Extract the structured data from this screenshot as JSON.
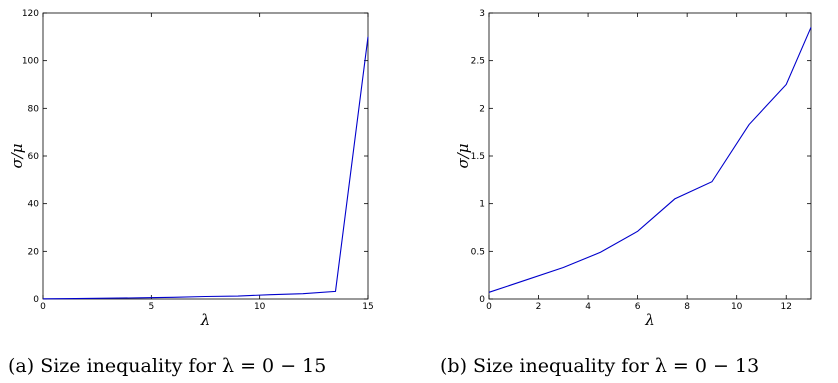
{
  "chart_data": [
    {
      "type": "line",
      "caption": "(a) Size inequality for λ = 0 − 15",
      "xlabel": "λ",
      "ylabel": "σ/μ",
      "xlim": [
        0,
        15
      ],
      "ylim": [
        0,
        120
      ],
      "xticks": [
        0,
        5,
        10,
        15
      ],
      "yticks": [
        0,
        20,
        40,
        60,
        80,
        100,
        120
      ],
      "grid": false,
      "series": [
        {
          "color": "#0000cc",
          "x": [
            0,
            1.5,
            3,
            4.5,
            6,
            7.5,
            9,
            10.5,
            12,
            13.5,
            15
          ],
          "y": [
            0.07,
            0.2,
            0.33,
            0.49,
            0.71,
            1.05,
            1.23,
            1.83,
            2.25,
            3.2,
            110
          ]
        }
      ]
    },
    {
      "type": "line",
      "caption": "(b) Size inequality for λ = 0 − 13",
      "xlabel": "λ",
      "ylabel": "σ/μ",
      "xlim": [
        0,
        13
      ],
      "ylim": [
        0,
        3
      ],
      "xticks": [
        0,
        2,
        4,
        6,
        8,
        10,
        12
      ],
      "yticks": [
        0,
        0.5,
        1,
        1.5,
        2,
        2.5,
        3
      ],
      "grid": false,
      "series": [
        {
          "color": "#0000cc",
          "x": [
            0,
            1.5,
            3,
            4.5,
            6,
            7.5,
            9,
            10.5,
            12,
            13
          ],
          "y": [
            0.07,
            0.2,
            0.33,
            0.49,
            0.71,
            1.05,
            1.23,
            1.83,
            2.25,
            2.85
          ]
        }
      ]
    }
  ]
}
